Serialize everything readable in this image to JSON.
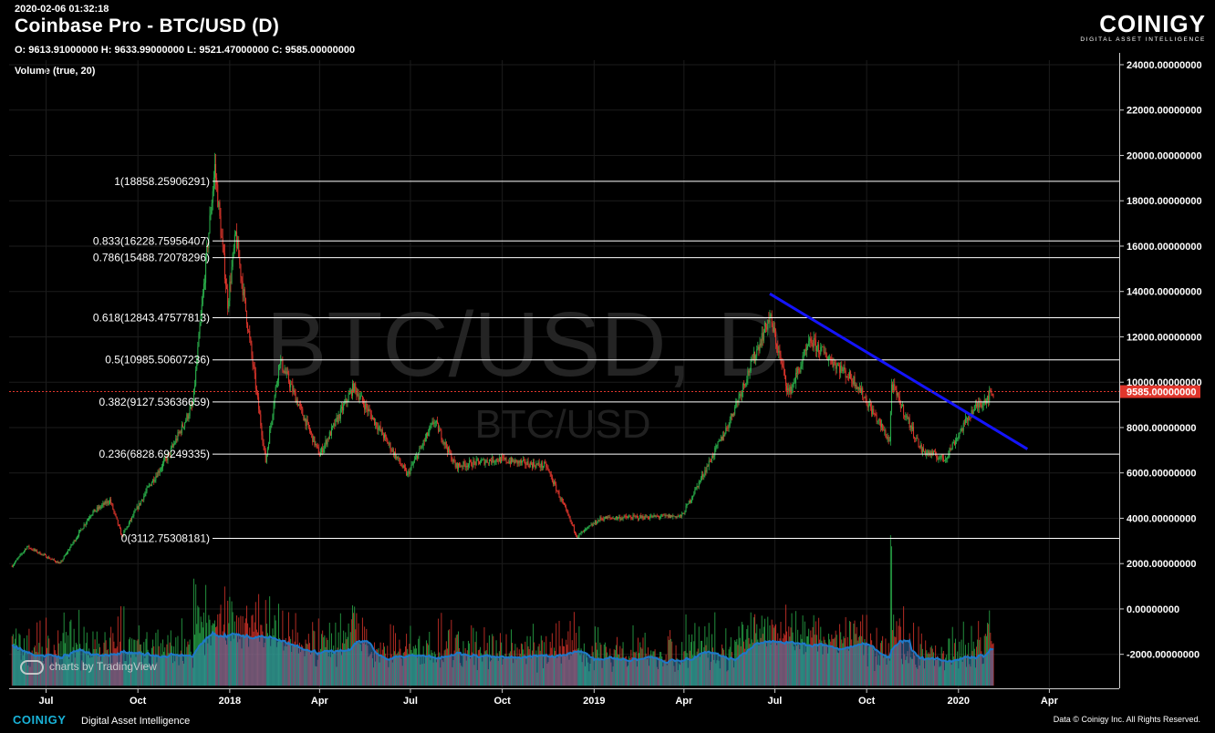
{
  "header": {
    "timestamp": "2020-02-06 01:32:18",
    "title": "Coinbase Pro - BTC/USD (D)",
    "ohlc": "O: 9613.91000000 H: 9633.99000000 L: 9521.47000000 C: 9585.00000000",
    "volume_label": "Volume (true, 20)"
  },
  "logo": {
    "name": "COINIGY",
    "tagline": "DIGITAL ASSET INTELLIGENCE"
  },
  "watermark": {
    "main": "BTC/USD, D",
    "sub": "BTC/USD"
  },
  "badge": {
    "text": "charts by TradingView"
  },
  "footer": {
    "brand": "COINIGY",
    "tagline": "Digital Asset Intelligence",
    "copyright": "Data © Coinigy Inc.  All Rights Reserved."
  },
  "colors": {
    "up": "#2bb24c",
    "down": "#e0362c",
    "fib": "#ffffff",
    "trend": "#1414ff",
    "price_tag": "#e0362c",
    "volume_ma": "#1e78c8"
  },
  "chart_data": {
    "type": "candlestick",
    "symbol": "BTC/USD",
    "exchange": "Coinbase Pro",
    "interval": "D",
    "ylim": [
      -3500,
      24200
    ],
    "y_ticks": [
      "24000.00000000",
      "22000.00000000",
      "20000.00000000",
      "18000.00000000",
      "16000.00000000",
      "14000.00000000",
      "12000.00000000",
      "10000.00000000",
      "8000.00000000",
      "6000.00000000",
      "4000.00000000",
      "2000.00000000",
      "0.00000000",
      "-2000.00000000"
    ],
    "y_tick_values": [
      24000,
      22000,
      20000,
      18000,
      16000,
      14000,
      12000,
      10000,
      8000,
      6000,
      4000,
      2000,
      0,
      -2000
    ],
    "x_ticks": [
      "Jul",
      "Oct",
      "2018",
      "Apr",
      "Jul",
      "Oct",
      "2019",
      "Apr",
      "Jul",
      "Oct",
      "2020",
      "Apr"
    ],
    "x_tick_dates": [
      "2017-07-01",
      "2017-10-01",
      "2018-01-01",
      "2018-04-01",
      "2018-07-01",
      "2018-10-01",
      "2019-01-01",
      "2019-04-01",
      "2019-07-01",
      "2019-10-01",
      "2020-01-01",
      "2020-04-01"
    ],
    "x_range": [
      "2017-05-25",
      "2020-06-10"
    ],
    "last_price": {
      "label": "9585.00000000",
      "value": 9585
    },
    "fibonacci": [
      {
        "label": "1(18858.25906291)",
        "value": 18858.25906291
      },
      {
        "label": "0.833(16228.75956407)",
        "value": 16228.75956407
      },
      {
        "label": "0.786(15488.72078296)",
        "value": 15488.72078296
      },
      {
        "label": "0.618(12843.47577813)",
        "value": 12843.47577813
      },
      {
        "label": "0.5(10985.50607236)",
        "value": 10985.50607236
      },
      {
        "label": "0.382(9127.53636659)",
        "value": 9127.53636659
      },
      {
        "label": "0.236(6828.69249335)",
        "value": 6828.69249335
      },
      {
        "label": "0(3112.75308181)",
        "value": 3112.75308181
      }
    ],
    "trendline": {
      "start": {
        "date": "2019-06-26",
        "price": 13900
      },
      "end": {
        "date": "2020-03-10",
        "price": 7050
      }
    },
    "price_path": [
      {
        "date": "2017-05-28",
        "price": 1900
      },
      {
        "date": "2017-06-12",
        "price": 2750
      },
      {
        "date": "2017-07-15",
        "price": 2000
      },
      {
        "date": "2017-08-15",
        "price": 4200
      },
      {
        "date": "2017-09-03",
        "price": 4800
      },
      {
        "date": "2017-09-15",
        "price": 3200
      },
      {
        "date": "2017-10-12",
        "price": 5400
      },
      {
        "date": "2017-11-01",
        "price": 6800
      },
      {
        "date": "2017-11-25",
        "price": 9000
      },
      {
        "date": "2017-12-17",
        "price": 19500
      },
      {
        "date": "2017-12-30",
        "price": 13500
      },
      {
        "date": "2018-01-07",
        "price": 16500
      },
      {
        "date": "2018-02-06",
        "price": 6500
      },
      {
        "date": "2018-02-20",
        "price": 11000
      },
      {
        "date": "2018-04-01",
        "price": 6800
      },
      {
        "date": "2018-05-05",
        "price": 9800
      },
      {
        "date": "2018-06-28",
        "price": 5900
      },
      {
        "date": "2018-07-25",
        "price": 8300
      },
      {
        "date": "2018-08-15",
        "price": 6300
      },
      {
        "date": "2018-09-25",
        "price": 6600
      },
      {
        "date": "2018-11-14",
        "price": 6300
      },
      {
        "date": "2018-12-15",
        "price": 3200
      },
      {
        "date": "2019-01-08",
        "price": 4000
      },
      {
        "date": "2019-03-30",
        "price": 4100
      },
      {
        "date": "2019-05-14",
        "price": 8000
      },
      {
        "date": "2019-06-26",
        "price": 12900
      },
      {
        "date": "2019-07-15",
        "price": 9500
      },
      {
        "date": "2019-08-06",
        "price": 11800
      },
      {
        "date": "2019-09-20",
        "price": 10000
      },
      {
        "date": "2019-10-24",
        "price": 7400
      },
      {
        "date": "2019-10-26",
        "price": 9900
      },
      {
        "date": "2019-11-25",
        "price": 7000
      },
      {
        "date": "2019-12-18",
        "price": 6600
      },
      {
        "date": "2020-01-14",
        "price": 8700
      },
      {
        "date": "2020-02-05",
        "price": 9585
      }
    ]
  }
}
